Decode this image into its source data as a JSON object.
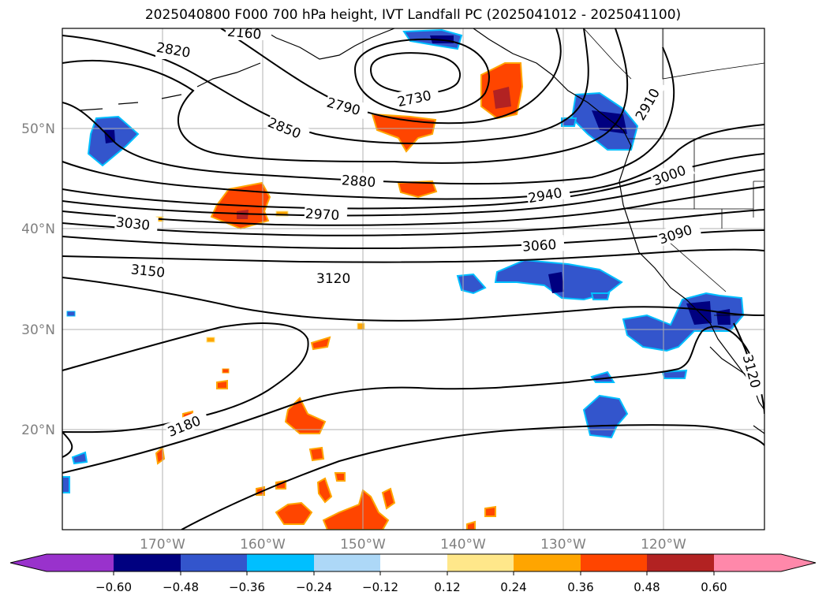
{
  "title": "2025040800 F000 700 hPa height, IVT Landfall PC (2025041012 - 2025041100)",
  "lat_labels": [
    "50°N",
    "40°N",
    "30°N",
    "20°N"
  ],
  "lon_labels": [
    "170°W",
    "160°W",
    "150°W",
    "140°W",
    "130°W",
    "120°W"
  ],
  "contour_labels": [
    "2160",
    "2820",
    "2730",
    "2790",
    "2850",
    "2880",
    "2940",
    "2910",
    "3000",
    "2970",
    "3030",
    "3060",
    "3090",
    "3150",
    "3120",
    "3180",
    "3120"
  ],
  "colorbar": {
    "ticks": [
      "−0.60",
      "−0.48",
      "−0.36",
      "−0.24",
      "−0.12",
      "0.12",
      "0.24",
      "0.36",
      "0.48",
      "0.60"
    ],
    "colors": [
      "#9932cc",
      "#000080",
      "#3355cc",
      "#00bfff",
      "#add8f7",
      "#ffffff",
      "#ffe78a",
      "#ffa500",
      "#ff4500",
      "#b22222",
      "#ff88aa"
    ]
  }
}
